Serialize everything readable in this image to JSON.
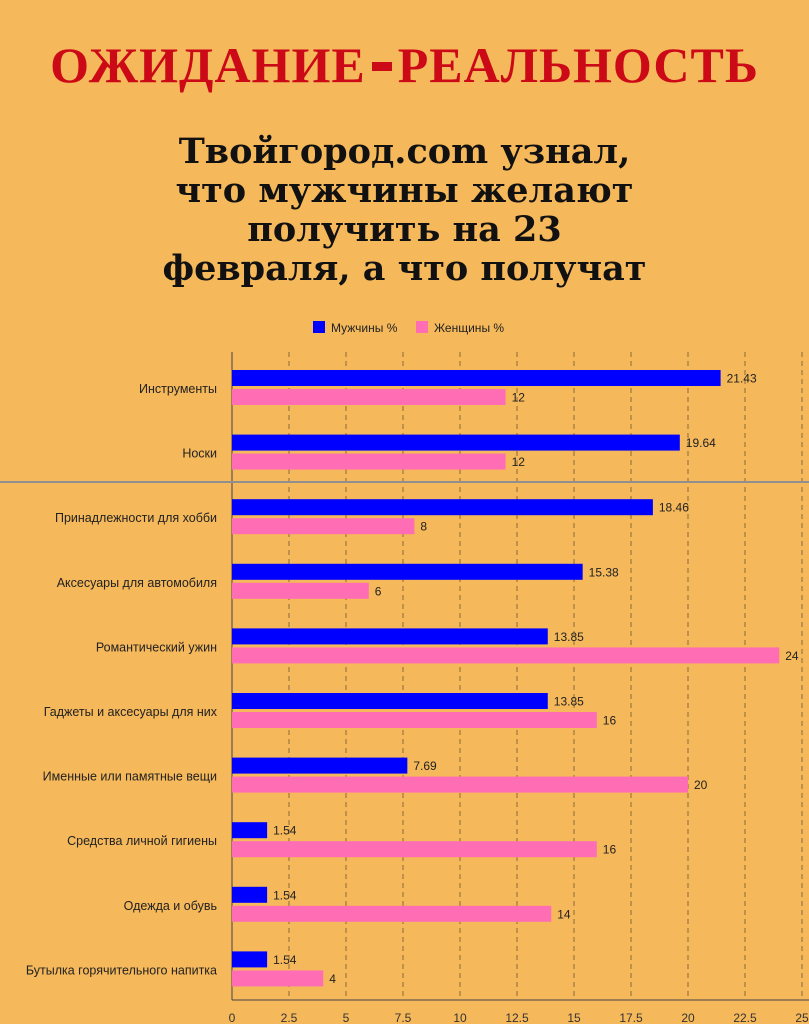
{
  "header": {
    "headline_left": "ОЖИДАНИЕ",
    "headline_right": "РЕАЛЬНОСТЬ",
    "subtitle_lines": [
      "Твойгород.com узнал,",
      "что мужчины желают",
      "получить на 23",
      "февраля, а что получат"
    ]
  },
  "chart_data": {
    "type": "bar",
    "orientation": "horizontal",
    "categories": [
      "Инструменты",
      "Носки",
      "Принадлежности для хобби",
      "Аксесуары для автомобиля",
      "Романтический ужин",
      "Гаджеты и аксесуары для них",
      "Именные или памятные вещи",
      "Средства личной гигиены",
      "Одежда и обувь",
      "Бутылка горячительного напитка"
    ],
    "series": [
      {
        "name": "Мужчины %",
        "color": "#0000ff",
        "values": [
          21.43,
          19.64,
          18.46,
          15.38,
          13.85,
          13.85,
          7.69,
          1.54,
          1.54,
          1.54
        ],
        "labels": [
          "21.43",
          "19.64",
          "18.46",
          "15.38",
          "13.85",
          "13.85",
          "7.69",
          "1.54",
          "1.54",
          "1.54"
        ]
      },
      {
        "name": "Женщины %",
        "color": "#ff6eb4",
        "values": [
          12,
          12,
          8,
          6,
          24,
          16,
          20,
          16,
          14,
          4
        ],
        "labels": [
          "12",
          "12",
          "8",
          "6",
          "24",
          "16",
          "20",
          "16",
          "14",
          "4"
        ]
      }
    ],
    "xticks": [
      "0",
      "2.5",
      "5",
      "7.5",
      "10",
      "12.5",
      "15",
      "17.5",
      "20",
      "22.5",
      "25"
    ],
    "xlim": [
      0,
      25
    ],
    "grid": true,
    "legend": "top-center"
  }
}
